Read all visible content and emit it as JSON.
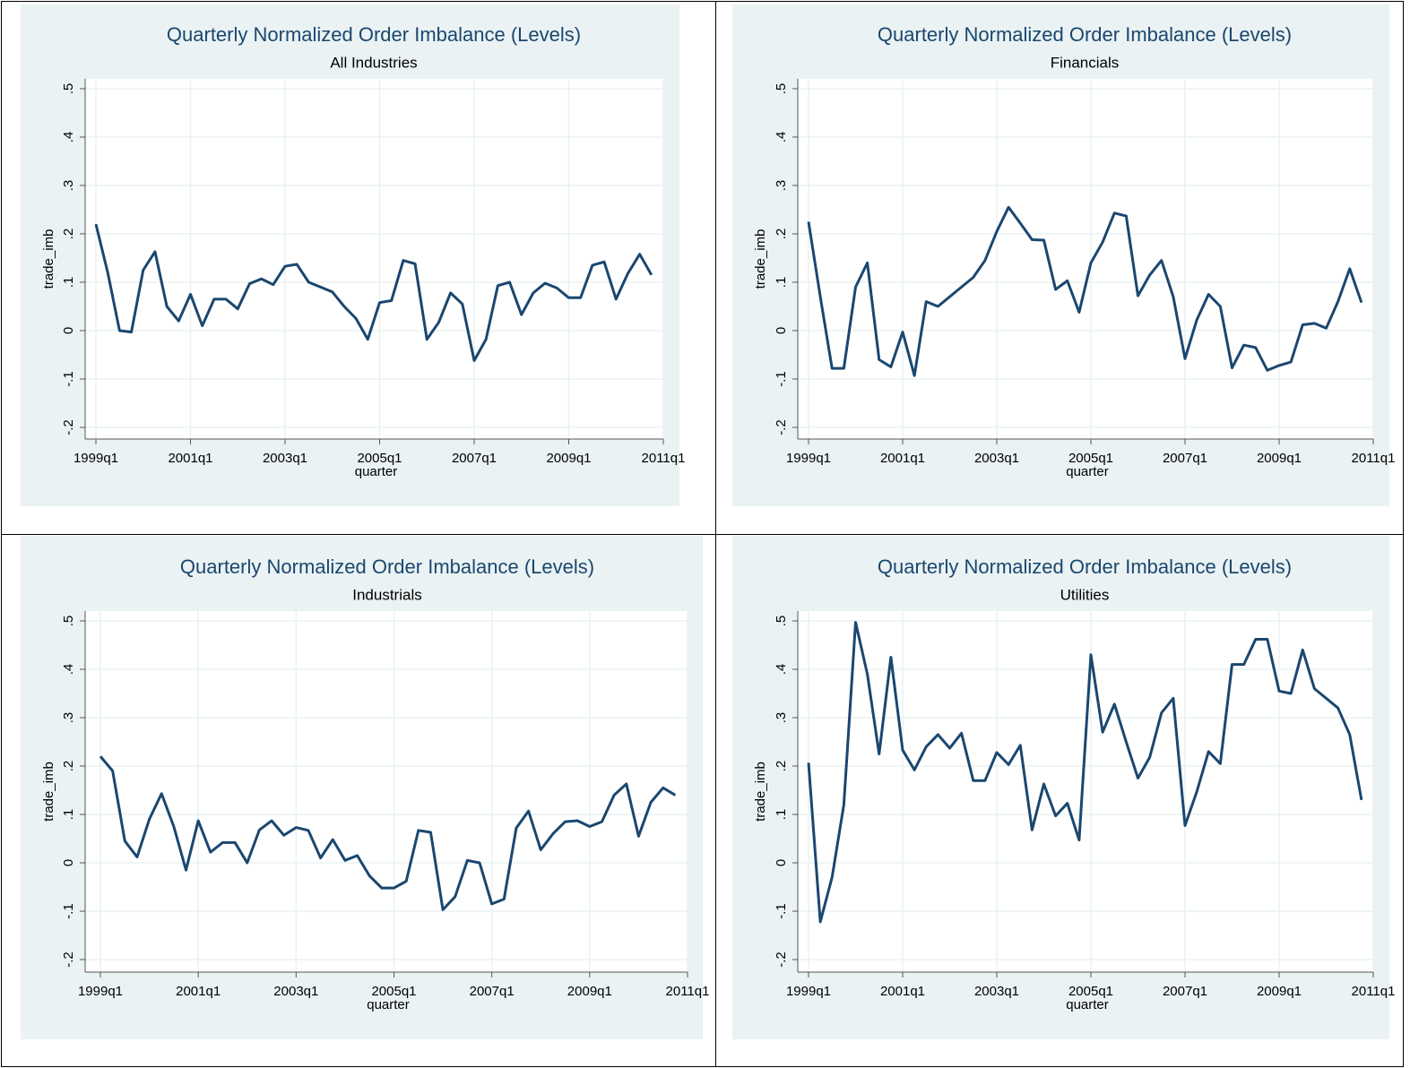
{
  "chart_data": [
    {
      "type": "line",
      "title": "Quarterly Normalized Order Imbalance (Levels)",
      "subtitle": "All Industries",
      "x_label": "quarter",
      "y_label": "trade_imb",
      "color": "#1a476f",
      "grid": true,
      "x": [
        "1999q1",
        "1999q2",
        "1999q3",
        "1999q4",
        "2000q1",
        "2000q2",
        "2000q3",
        "2000q4",
        "2001q1",
        "2001q2",
        "2001q3",
        "2001q4",
        "2002q1",
        "2002q2",
        "2002q3",
        "2002q4",
        "2003q1",
        "2003q2",
        "2003q3",
        "2003q4",
        "2004q1",
        "2004q2",
        "2004q3",
        "2004q4",
        "2005q1",
        "2005q2",
        "2005q3",
        "2005q4",
        "2006q1",
        "2006q2",
        "2006q3",
        "2006q4",
        "2007q1",
        "2007q2",
        "2007q3",
        "2007q4",
        "2008q1",
        "2008q2",
        "2008q3",
        "2008q4",
        "2009q1",
        "2009q2",
        "2009q3",
        "2009q4",
        "2010q1",
        "2010q2",
        "2010q3",
        "2010q4"
      ],
      "values": [
        0.22,
        0.12,
        0.0,
        -0.003,
        0.125,
        0.163,
        0.05,
        0.02,
        0.075,
        0.01,
        0.065,
        0.065,
        0.045,
        0.097,
        0.107,
        0.095,
        0.133,
        0.137,
        0.1,
        0.09,
        0.08,
        0.05,
        0.025,
        -0.018,
        0.058,
        0.062,
        0.145,
        0.138,
        -0.018,
        0.017,
        0.078,
        0.055,
        -0.062,
        -0.018,
        0.093,
        0.1,
        0.033,
        0.078,
        0.098,
        0.088,
        0.068,
        0.068,
        0.135,
        0.142,
        0.065,
        0.118,
        0.158,
        0.115
      ],
      "xlim": [
        "1999q1",
        "2011q1"
      ],
      "xticks": [
        "1999q1",
        "2001q1",
        "2003q1",
        "2005q1",
        "2007q1",
        "2009q1",
        "2011q1"
      ],
      "ylim": [
        -0.2,
        0.5
      ],
      "yticks": [
        {
          "value": -0.2,
          "label": "-.2"
        },
        {
          "value": -0.1,
          "label": "-.1"
        },
        0,
        {
          "value": 0.1,
          "label": ".1"
        },
        {
          "value": 0.2,
          "label": ".2"
        },
        {
          "value": 0.3,
          "label": ".3"
        },
        {
          "value": 0.4,
          "label": ".4"
        },
        {
          "value": 0.5,
          "label": ".5"
        }
      ]
    },
    {
      "type": "line",
      "title": "Quarterly Normalized Order Imbalance (Levels)",
      "subtitle": "Financials",
      "x_label": "quarter",
      "y_label": "trade_imb",
      "color": "#1a476f",
      "grid": true,
      "x": [
        "1999q1",
        "1999q2",
        "1999q3",
        "1999q4",
        "2000q1",
        "2000q2",
        "2000q3",
        "2000q4",
        "2001q1",
        "2001q2",
        "2001q3",
        "2001q4",
        "2002q1",
        "2002q2",
        "2002q3",
        "2002q4",
        "2003q1",
        "2003q2",
        "2003q3",
        "2003q4",
        "2004q1",
        "2004q2",
        "2004q3",
        "2004q4",
        "2005q1",
        "2005q2",
        "2005q3",
        "2005q4",
        "2006q1",
        "2006q2",
        "2006q3",
        "2006q4",
        "2007q1",
        "2007q2",
        "2007q3",
        "2007q4",
        "2008q1",
        "2008q2",
        "2008q3",
        "2008q4",
        "2009q1",
        "2009q2",
        "2009q3",
        "2009q4",
        "2010q1",
        "2010q2",
        "2010q3",
        "2010q4"
      ],
      "values": [
        0.225,
        0.07,
        -0.078,
        -0.078,
        0.09,
        0.14,
        -0.06,
        -0.075,
        -0.003,
        -0.093,
        0.06,
        0.05,
        0.07,
        0.09,
        0.11,
        0.145,
        0.205,
        0.255,
        0.222,
        0.188,
        0.187,
        0.085,
        0.103,
        0.038,
        0.14,
        0.183,
        0.243,
        0.237,
        0.072,
        0.115,
        0.145,
        0.07,
        -0.058,
        0.022,
        0.075,
        0.05,
        -0.077,
        -0.03,
        -0.035,
        -0.082,
        -0.072,
        -0.065,
        0.012,
        0.015,
        0.005,
        0.06,
        0.128,
        0.058
      ],
      "xlim": [
        "1999q1",
        "2011q1"
      ],
      "xticks": [
        "1999q1",
        "2001q1",
        "2003q1",
        "2005q1",
        "2007q1",
        "2009q1",
        "2011q1"
      ],
      "ylim": [
        -0.2,
        0.5
      ],
      "yticks": [
        {
          "value": -0.2,
          "label": "-.2"
        },
        {
          "value": -0.1,
          "label": "-.1"
        },
        0,
        {
          "value": 0.1,
          "label": ".1"
        },
        {
          "value": 0.2,
          "label": ".2"
        },
        {
          "value": 0.3,
          "label": ".3"
        },
        {
          "value": 0.4,
          "label": ".4"
        },
        {
          "value": 0.5,
          "label": ".5"
        }
      ]
    },
    {
      "type": "line",
      "title": "Quarterly Normalized Order Imbalance (Levels)",
      "subtitle": "Industrials",
      "x_label": "quarter",
      "y_label": "trade_imb",
      "color": "#1a476f",
      "grid": true,
      "x": [
        "1999q1",
        "1999q2",
        "1999q3",
        "1999q4",
        "2000q1",
        "2000q2",
        "2000q3",
        "2000q4",
        "2001q1",
        "2001q2",
        "2001q3",
        "2001q4",
        "2002q1",
        "2002q2",
        "2002q3",
        "2002q4",
        "2003q1",
        "2003q2",
        "2003q3",
        "2003q4",
        "2004q1",
        "2004q2",
        "2004q3",
        "2004q4",
        "2005q1",
        "2005q2",
        "2005q3",
        "2005q4",
        "2006q1",
        "2006q2",
        "2006q3",
        "2006q4",
        "2007q1",
        "2007q2",
        "2007q3",
        "2007q4",
        "2008q1",
        "2008q2",
        "2008q3",
        "2008q4",
        "2009q1",
        "2009q2",
        "2009q3",
        "2009q4",
        "2010q1",
        "2010q2",
        "2010q3",
        "2010q4"
      ],
      "values": [
        0.22,
        0.19,
        0.045,
        0.012,
        0.09,
        0.143,
        0.075,
        -0.015,
        0.087,
        0.022,
        0.042,
        0.042,
        0.0,
        0.068,
        0.087,
        0.057,
        0.073,
        0.067,
        0.01,
        0.048,
        0.005,
        0.015,
        -0.027,
        -0.052,
        -0.052,
        -0.038,
        0.067,
        0.063,
        -0.097,
        -0.07,
        0.005,
        0.0,
        -0.085,
        -0.075,
        0.072,
        0.107,
        0.027,
        0.06,
        0.085,
        0.087,
        0.075,
        0.085,
        0.14,
        0.163,
        0.055,
        0.125,
        0.155,
        0.14
      ],
      "xlim": [
        "1999q1",
        "2011q1"
      ],
      "xticks": [
        "1999q1",
        "2001q1",
        "2003q1",
        "2005q1",
        "2007q1",
        "2009q1",
        "2011q1"
      ],
      "ylim": [
        -0.2,
        0.5
      ],
      "yticks": [
        {
          "value": -0.2,
          "label": "-.2"
        },
        {
          "value": -0.1,
          "label": "-.1"
        },
        0,
        {
          "value": 0.1,
          "label": ".1"
        },
        {
          "value": 0.2,
          "label": ".2"
        },
        {
          "value": 0.3,
          "label": ".3"
        },
        {
          "value": 0.4,
          "label": ".4"
        },
        {
          "value": 0.5,
          "label": ".5"
        }
      ]
    },
    {
      "type": "line",
      "title": "Quarterly Normalized Order Imbalance (Levels)",
      "subtitle": "Utilities",
      "x_label": "quarter",
      "y_label": "trade_imb",
      "color": "#1a476f",
      "grid": true,
      "x": [
        "1999q1",
        "1999q2",
        "1999q3",
        "1999q4",
        "2000q1",
        "2000q2",
        "2000q3",
        "2000q4",
        "2001q1",
        "2001q2",
        "2001q3",
        "2001q4",
        "2002q1",
        "2002q2",
        "2002q3",
        "2002q4",
        "2003q1",
        "2003q2",
        "2003q3",
        "2003q4",
        "2004q1",
        "2004q2",
        "2004q3",
        "2004q4",
        "2005q1",
        "2005q2",
        "2005q3",
        "2005q4",
        "2006q1",
        "2006q2",
        "2006q3",
        "2006q4",
        "2007q1",
        "2007q2",
        "2007q3",
        "2007q4",
        "2008q1",
        "2008q2",
        "2008q3",
        "2008q4",
        "2009q1",
        "2009q2",
        "2009q3",
        "2009q4",
        "2010q1",
        "2010q2",
        "2010q3",
        "2010q4"
      ],
      "values": [
        0.207,
        -0.122,
        -0.03,
        0.12,
        0.497,
        0.39,
        0.225,
        0.425,
        0.233,
        0.192,
        0.24,
        0.265,
        0.237,
        0.268,
        0.17,
        0.17,
        0.228,
        0.203,
        0.243,
        0.068,
        0.163,
        0.097,
        0.123,
        0.047,
        0.43,
        0.27,
        0.328,
        0.25,
        0.175,
        0.218,
        0.31,
        0.34,
        0.077,
        0.147,
        0.23,
        0.205,
        0.41,
        0.41,
        0.462,
        0.462,
        0.355,
        0.35,
        0.44,
        0.36,
        0.34,
        0.32,
        0.265,
        0.13
      ],
      "xlim": [
        "1999q1",
        "2011q1"
      ],
      "xticks": [
        "1999q1",
        "2001q1",
        "2003q1",
        "2005q1",
        "2007q1",
        "2009q1",
        "2011q1"
      ],
      "ylim": [
        -0.2,
        0.5
      ],
      "yticks": [
        {
          "value": -0.2,
          "label": "-.2"
        },
        {
          "value": -0.1,
          "label": "-.1"
        },
        0,
        {
          "value": 0.1,
          "label": ".1"
        },
        {
          "value": 0.2,
          "label": ".2"
        },
        {
          "value": 0.3,
          "label": ".3"
        },
        {
          "value": 0.4,
          "label": ".4"
        },
        {
          "value": 0.5,
          "label": ".5"
        }
      ]
    }
  ]
}
